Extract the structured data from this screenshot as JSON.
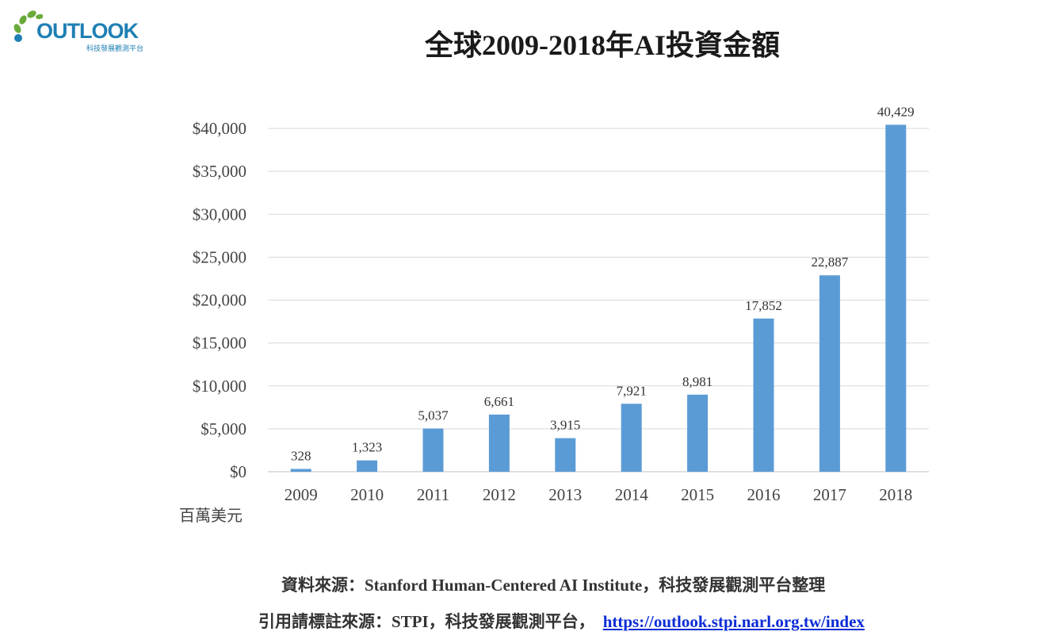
{
  "logo": {
    "wordmark": "OUTLOOK",
    "subtitle": "科技發展觀測平台",
    "colors": {
      "green": "#6aaa3a",
      "blue": "#1e7fb4"
    }
  },
  "chart_data": {
    "type": "bar",
    "title": "全球2009-2018年AI投資金額",
    "unit_label": "百萬美元",
    "categories": [
      "2009",
      "2010",
      "2011",
      "2012",
      "2013",
      "2014",
      "2015",
      "2016",
      "2017",
      "2018"
    ],
    "series": [
      {
        "values": [
          328,
          1323,
          5037,
          6661,
          3915,
          7921,
          8981,
          17852,
          22887,
          40429
        ],
        "labels": [
          "328",
          "1,323",
          "5,037",
          "6,661",
          "3,915",
          "7,921",
          "8,981",
          "17,852",
          "22,887",
          "40,429"
        ],
        "color": "#5b9bd5"
      }
    ],
    "y_ticks": [
      0,
      5000,
      10000,
      15000,
      20000,
      25000,
      30000,
      35000,
      40000
    ],
    "y_tick_labels": [
      "$0",
      "$5,000",
      "$10,000",
      "$15,000",
      "$20,000",
      "$25,000",
      "$30,000",
      "$35,000",
      "$40,000"
    ],
    "ylim": [
      0,
      40000
    ],
    "grid": true,
    "legend": "none"
  },
  "footer": {
    "source": "資料來源：Stanford Human-Centered AI Institute，科技發展觀測平台整理",
    "cite_prefix": "引用請標註來源：STPI，科技發展觀測平台，",
    "cite_link": "https://outlook.stpi.narl.org.tw/index"
  }
}
